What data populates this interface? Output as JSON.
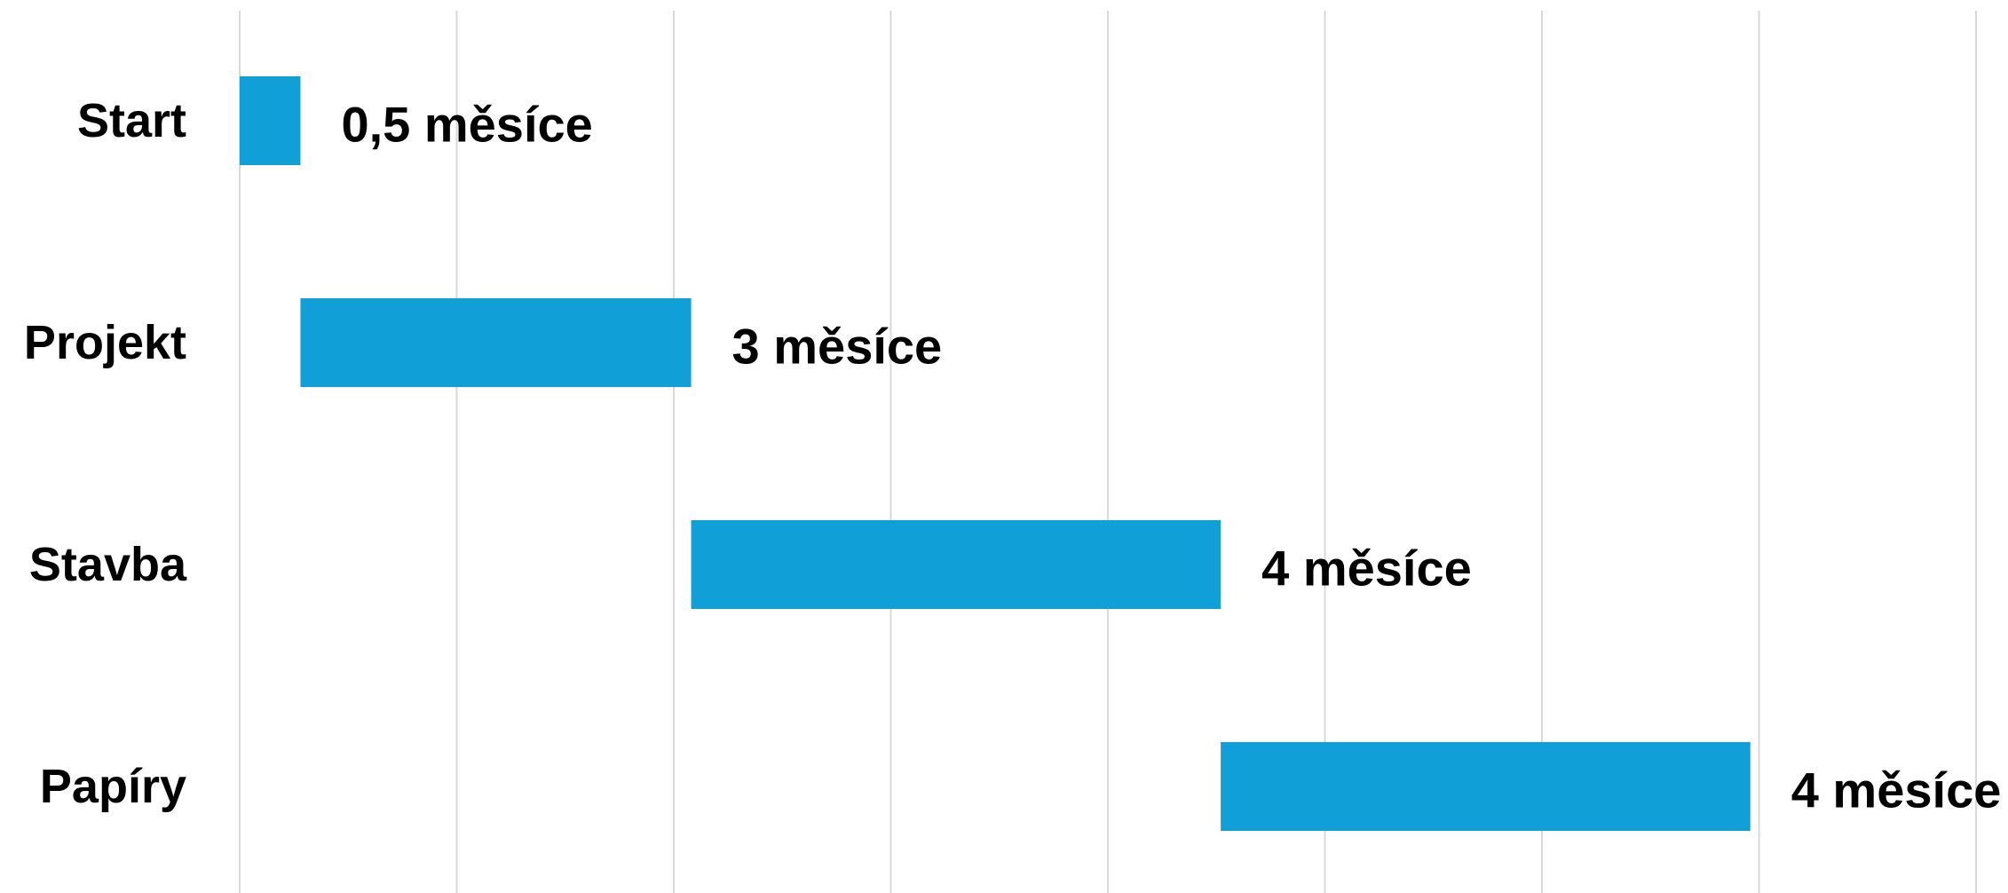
{
  "chart_data": {
    "type": "bar",
    "orientation": "horizontal",
    "stacked": true,
    "bar_color": "#109FD6",
    "grid": true,
    "legend": "none",
    "xlim": [
      0,
      8
    ],
    "gridline_step": 1,
    "categories": [
      "Start",
      "Projekt",
      "Stavba",
      "Papíry"
    ],
    "start": [
      0,
      0.28,
      2.08,
      4.52
    ],
    "values": [
      0.28,
      1.8,
      2.44,
      2.44
    ],
    "labels": [
      "0,5 měsíce",
      "3 měsíce",
      "4 měsíce",
      "4 měsíce"
    ]
  }
}
